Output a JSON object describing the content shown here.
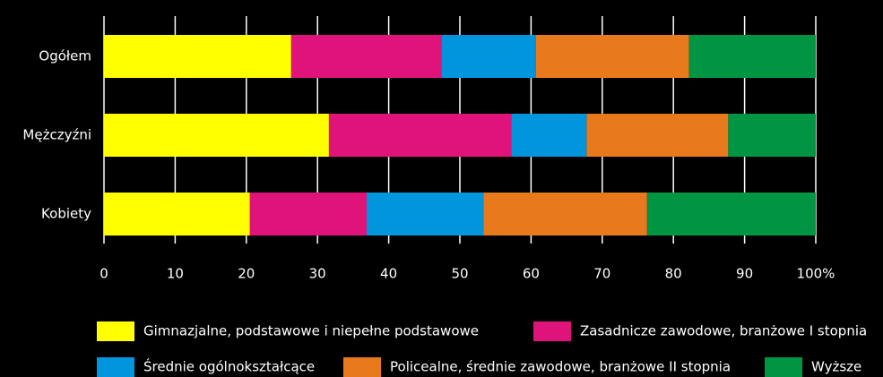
{
  "chart_data": {
    "type": "stacked_barh",
    "categories": [
      "Ogółem",
      "Mężczyźni",
      "Kobiety"
    ],
    "series": [
      {
        "name": "Gimnazjalne, podstawowe i niepełne podstawowe",
        "color": "#ffff00",
        "values": [
          26.3,
          31.6,
          20.5
        ]
      },
      {
        "name": "Zasadnicze zawodowe, branżowe I stopnia",
        "color": "#e0137a",
        "values": [
          21.1,
          25.6,
          16.4
        ]
      },
      {
        "name": "Średnie ogólnokształcące",
        "color": "#0095dd",
        "values": [
          13.3,
          10.6,
          16.4
        ]
      },
      {
        "name": "Policealne, średnie zawodowe, branżowe II stopnia",
        "color": "#e8791c",
        "values": [
          21.5,
          19.9,
          23.0
        ]
      },
      {
        "name": "Wyższe",
        "color": "#009543",
        "values": [
          17.8,
          12.3,
          23.7
        ]
      }
    ],
    "xlim": [
      0,
      100
    ],
    "xticks": [
      0,
      10,
      20,
      30,
      40,
      50,
      60,
      70,
      80,
      90,
      {
        "value": 100,
        "label": "100%"
      }
    ],
    "grid": true
  }
}
